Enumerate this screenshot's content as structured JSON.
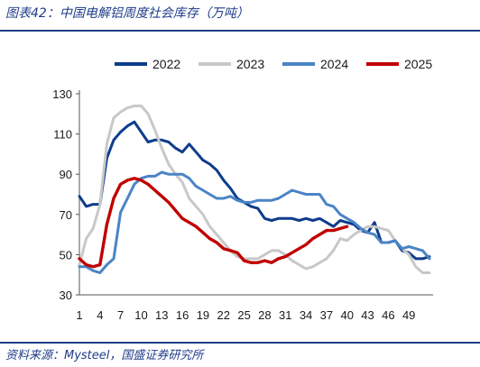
{
  "header": {
    "title": "图表42：中国电解铝周度社会库存（万吨）"
  },
  "footer": {
    "source": "资料来源：Mysteel，国盛证券研究所"
  },
  "chart_data": {
    "type": "line",
    "title": "中国电解铝周度社会库存（万吨）",
    "xlabel": "",
    "ylabel": "",
    "xlim": [
      1,
      52
    ],
    "ylim": [
      30,
      130
    ],
    "x_ticks": [
      1,
      4,
      7,
      10,
      13,
      16,
      19,
      22,
      25,
      28,
      31,
      34,
      37,
      40,
      43,
      46,
      49
    ],
    "y_ticks": [
      30,
      50,
      70,
      90,
      110,
      130
    ],
    "grid": false,
    "legend": "top",
    "series": [
      {
        "name": "2022",
        "color": "#0d3c8c",
        "values": [
          79,
          74,
          75,
          75,
          98,
          107,
          111,
          114,
          116,
          111,
          106,
          107,
          107,
          106,
          103,
          101,
          105,
          101,
          97,
          95,
          92,
          87,
          83,
          78,
          76,
          74,
          73,
          68,
          67,
          68,
          68,
          68,
          67,
          68,
          67,
          68,
          66,
          64,
          67,
          66,
          65,
          62,
          61,
          66,
          56,
          56,
          57,
          52,
          51,
          48,
          48,
          49
        ]
      },
      {
        "name": "2023",
        "color": "#c8c8c8",
        "values": [
          45,
          58,
          63,
          75,
          105,
          118,
          121,
          123,
          124,
          124,
          120,
          112,
          103,
          95,
          90,
          86,
          78,
          74,
          70,
          64,
          60,
          56,
          52,
          49,
          48,
          48,
          48,
          50,
          52,
          52,
          50,
          47,
          45,
          43,
          44,
          46,
          48,
          52,
          58,
          57,
          60,
          62,
          64,
          64,
          63,
          62,
          57,
          53,
          50,
          44,
          41,
          41
        ]
      },
      {
        "name": "2024",
        "color": "#4a84c6",
        "values": [
          44,
          44,
          42,
          41,
          45,
          48,
          71,
          78,
          85,
          88,
          89,
          89,
          91,
          90,
          90,
          90,
          88,
          84,
          82,
          80,
          78,
          78,
          79,
          77,
          76,
          76,
          77,
          77,
          77,
          78,
          80,
          82,
          81,
          80,
          80,
          80,
          75,
          74,
          70,
          68,
          66,
          63,
          61,
          60,
          56,
          56,
          57,
          53,
          54,
          53,
          52,
          48
        ]
      },
      {
        "name": "2025",
        "color": "#c00000",
        "values": [
          48,
          45,
          44,
          45,
          65,
          78,
          85,
          87,
          88,
          87,
          85,
          82,
          79,
          76,
          72,
          68,
          66,
          64,
          61,
          58,
          56,
          53,
          52,
          51,
          47,
          46,
          46,
          47,
          46,
          48,
          49,
          51,
          53,
          55,
          58,
          60,
          62,
          62,
          63,
          64
        ]
      }
    ]
  }
}
